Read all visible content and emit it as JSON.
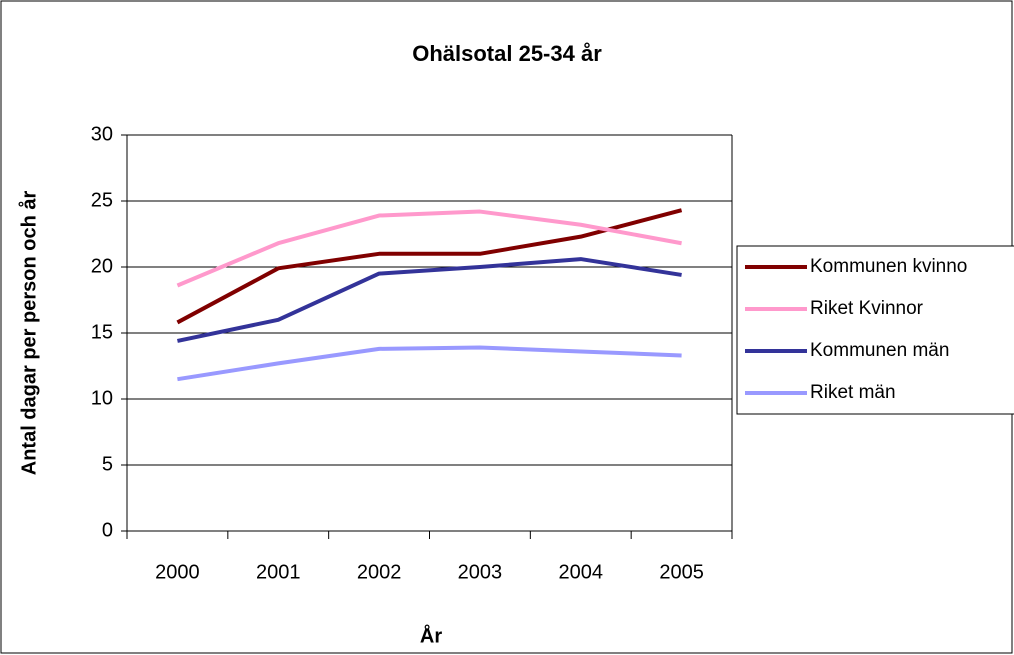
{
  "chart_data": {
    "type": "line",
    "title": "Ohälsotal 25-34 år",
    "x_label": "År",
    "y_label": "Antal dagar per person och år",
    "categories": [
      "2000",
      "2001",
      "2002",
      "2003",
      "2004",
      "2005"
    ],
    "series": [
      {
        "name": "Kommunen kvinno",
        "color": "#800000",
        "values": [
          15.8,
          19.9,
          21.0,
          21.0,
          22.3,
          24.3
        ]
      },
      {
        "name": "Riket Kvinnor",
        "color": "#ff99cc",
        "values": [
          18.6,
          21.8,
          23.9,
          24.2,
          23.2,
          21.8
        ]
      },
      {
        "name": "Kommunen män",
        "color": "#333399",
        "values": [
          14.4,
          16.0,
          19.5,
          20.0,
          20.6,
          19.4
        ]
      },
      {
        "name": "Riket män",
        "color": "#9999ff",
        "values": [
          11.5,
          12.7,
          13.8,
          13.9,
          13.6,
          13.3
        ]
      }
    ],
    "ylim": [
      0,
      30
    ],
    "yticks": [
      0,
      5,
      10,
      15,
      20,
      25,
      30
    ],
    "grid": true,
    "legend": "right"
  }
}
